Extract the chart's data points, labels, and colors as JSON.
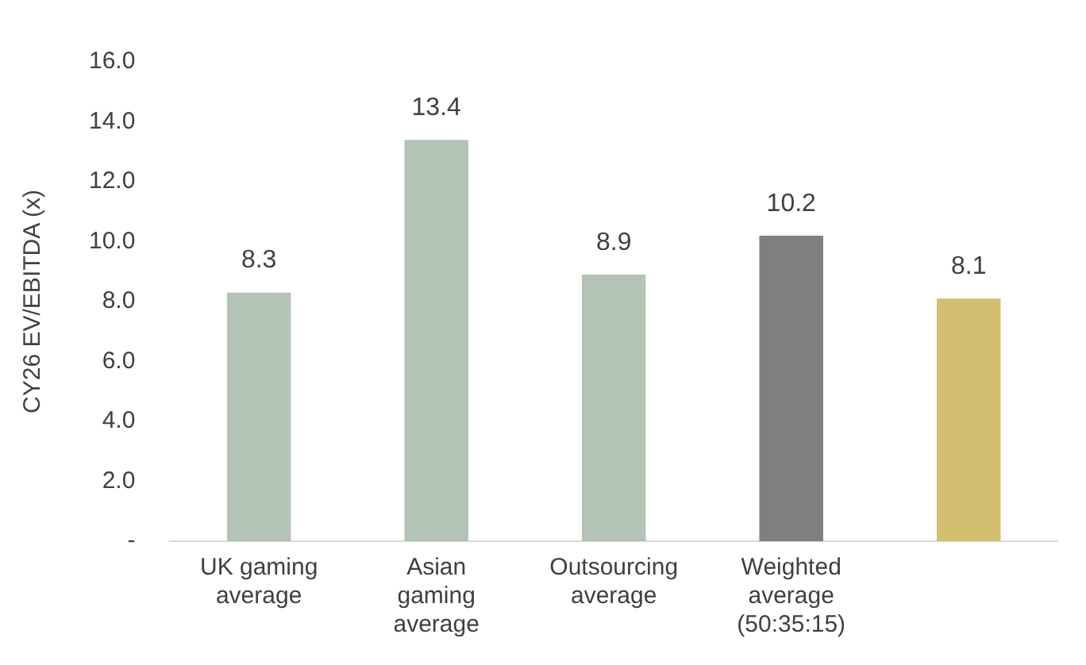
{
  "chart_data": {
    "type": "bar",
    "ylabel": "CY26 EV/EBITDA (x)",
    "categories": [
      "UK gaming average",
      "Asian gaming average",
      "Outsourcing average",
      "Weighted average (50:35:15)",
      null
    ],
    "values": [
      8.3,
      13.4,
      8.9,
      10.2,
      8.1
    ],
    "colors": [
      "#b3c3b6",
      "#b3c3b6",
      "#b3c3b6",
      "#7f7f7f",
      "#d4bf70"
    ],
    "ylim": [
      0,
      16
    ],
    "yticks": [
      {
        "value": 0,
        "label": "-"
      },
      {
        "value": 2,
        "label": "2.0"
      },
      {
        "value": 4,
        "label": "4.0"
      },
      {
        "value": 6,
        "label": "6.0"
      },
      {
        "value": 8,
        "label": "8.0"
      },
      {
        "value": 10,
        "label": "10.0"
      },
      {
        "value": 12,
        "label": "12.0"
      },
      {
        "value": 14,
        "label": "14.0"
      },
      {
        "value": 16,
        "label": "16.0"
      }
    ],
    "grid": false,
    "data_labels": true
  }
}
